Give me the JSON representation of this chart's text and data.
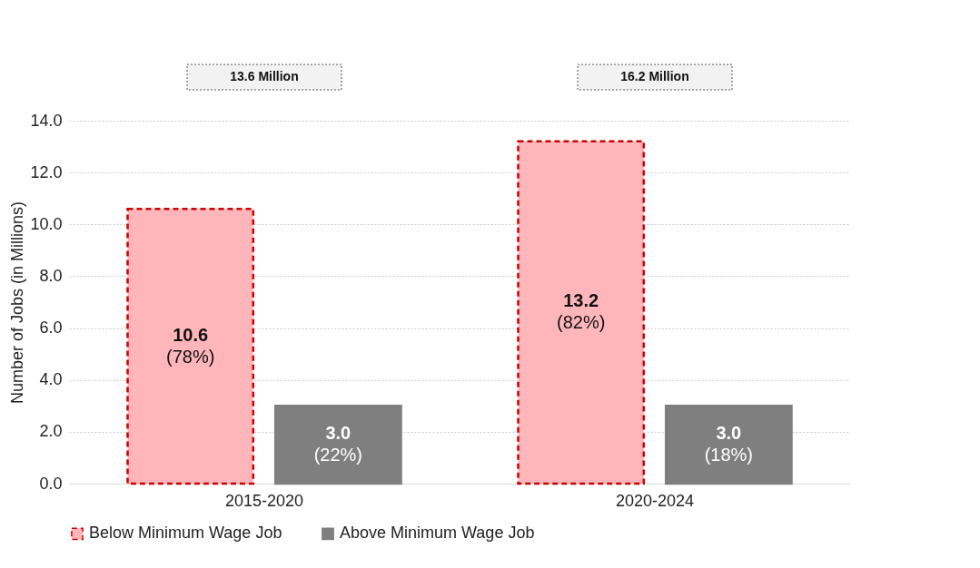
{
  "chart_data": {
    "type": "bar",
    "ylabel": "Number of Jobs (in Millions)",
    "categories": [
      "2015-2020",
      "2020-2024"
    ],
    "series": [
      {
        "name": "Below Minimum Wage Job",
        "color": "#ffb6bb",
        "line_style": "dashed",
        "values": [
          10.6,
          13.2
        ],
        "value_labels": [
          "10.6\n(78%)",
          "13.2\n(82%)"
        ]
      },
      {
        "name": "Above Minimum Wage Job",
        "color": "#7f7f7f",
        "values": [
          3.0,
          3.0
        ],
        "value_labels": [
          "3.0\n(22%)",
          "3.0\n(18%)"
        ]
      }
    ],
    "annotations": [
      "13.6 Million",
      "16.2 Million"
    ],
    "ylim": [
      0,
      14
    ],
    "yticks": [
      {
        "value": 0,
        "label": "0.0"
      },
      {
        "value": 2,
        "label": "2.0"
      },
      {
        "value": 4,
        "label": "4.0"
      },
      {
        "value": 6,
        "label": "6.0"
      },
      {
        "value": 8,
        "label": "8.0"
      },
      {
        "value": 10,
        "label": "10.0"
      },
      {
        "value": 12,
        "label": "12.0"
      },
      {
        "value": 14,
        "label": "14.0"
      }
    ],
    "grid": "y",
    "legend": "bottom"
  }
}
